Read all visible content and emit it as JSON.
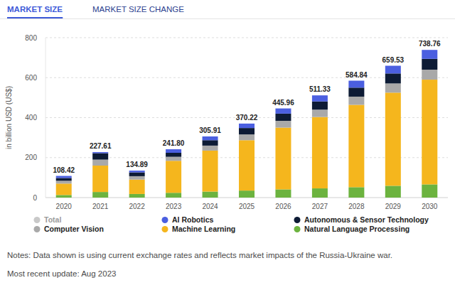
{
  "chart_data": {
    "type": "bar",
    "stacked": true,
    "data_labels": true,
    "grid": true,
    "tabs": [
      "MARKET SIZE",
      "MARKET SIZE CHANGE"
    ],
    "y_label": "in billion USD (US$)",
    "categories": [
      "2020",
      "2021",
      "2022",
      "2023",
      "2024",
      "2025",
      "2026",
      "2027",
      "2028",
      "2029",
      "2030"
    ],
    "ylim": [
      0,
      800
    ],
    "yticks": [
      0,
      200,
      400,
      600,
      800
    ],
    "series": [
      {
        "name": "Total",
        "type": "total",
        "color": "#c9c9c9",
        "values": [
          108.42,
          227.61,
          134.89,
          241.8,
          305.91,
          370.22,
          445.96,
          511.33,
          584.84,
          659.53,
          738.76
        ],
        "value_labels": [
          "108.42",
          "227.61",
          "134.89",
          "241.80",
          "305.91",
          "370.22",
          "445.96",
          "511.33",
          "584.84",
          "659.53",
          "738.76"
        ]
      },
      {
        "name": "AI Robotics",
        "color": "#4b5fe0",
        "values": [
          10.42,
          5.61,
          8.89,
          17.8,
          18.91,
          22.22,
          25.96,
          30.33,
          34.84,
          38.53,
          44.76
        ]
      },
      {
        "name": "Autonomous & Sensor Technology",
        "color": "#0d1b35",
        "values": [
          14,
          32,
          19,
          20,
          27,
          32,
          36,
          41,
          45,
          50,
          54
        ]
      },
      {
        "name": "Computer Vision",
        "color": "#a9a9a9",
        "values": [
          14,
          30,
          17,
          20,
          25,
          29,
          34,
          37,
          41,
          46,
          50
        ]
      },
      {
        "name": "Machine Learning",
        "color": "#f5b61d",
        "values": [
          57,
          132,
          72,
          160,
          205,
          252,
          309,
          357,
          412,
          466,
          524
        ]
      },
      {
        "name": "Natural Language Processing",
        "color": "#6cb33f",
        "values": [
          13,
          28,
          18,
          24,
          30,
          35,
          41,
          46,
          52,
          59,
          66
        ]
      }
    ],
    "notes": [
      "Notes: Data shown is using current exchange rates and reflects market impacts of the Russia-Ukraine war.",
      "Most recent update: Aug 2023"
    ]
  }
}
